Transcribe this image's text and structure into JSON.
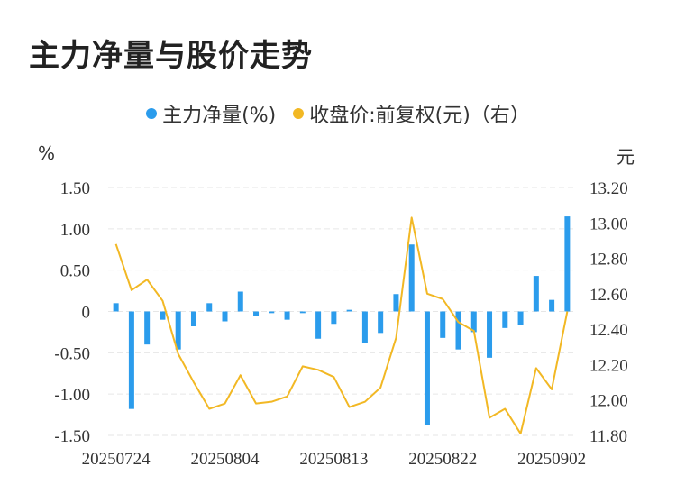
{
  "title": "主力净量与股价走势",
  "colors": {
    "bar": "#2b9cec",
    "line": "#f2b824",
    "grid": "#e6e6e6"
  },
  "chart_data": {
    "type": "bar+line",
    "title": "主力净量与股价走势",
    "legend": {
      "position": "top-center",
      "items": [
        "主力净量(%)",
        "收盘价:前复权(元)（右）"
      ]
    },
    "left_axis": {
      "unit": "%",
      "range": [
        -1.5,
        1.5
      ],
      "ticks": [
        1.5,
        1.0,
        0.5,
        0,
        -0.5,
        -1.0,
        -1.5
      ],
      "tick_labels": [
        "1.50",
        "1.00",
        "0.50",
        "0",
        "-0.50",
        "-1.00",
        "-1.50"
      ]
    },
    "right_axis": {
      "unit": "元",
      "range": [
        11.8,
        13.2
      ],
      "ticks": [
        13.2,
        13.0,
        12.8,
        12.6,
        12.4,
        12.2,
        12.0,
        11.8
      ],
      "tick_labels": [
        "13.20",
        "13.00",
        "12.80",
        "12.60",
        "12.40",
        "12.20",
        "12.00",
        "11.80"
      ]
    },
    "x_tick_labels": [
      "20250724",
      "20250804",
      "20250813",
      "20250822",
      "20250902"
    ],
    "x_tick_indices": [
      0,
      7,
      14,
      21,
      28
    ],
    "grid": true,
    "series": [
      {
        "name": "主力净量(%)",
        "type": "bar",
        "axis": "left",
        "values": [
          0.1,
          -1.18,
          -0.4,
          -0.1,
          -0.46,
          -0.18,
          0.1,
          -0.12,
          0.24,
          -0.06,
          -0.02,
          -0.1,
          -0.02,
          -0.33,
          -0.15,
          0.02,
          -0.38,
          -0.26,
          0.21,
          0.81,
          -1.38,
          -0.32,
          -0.46,
          -0.25,
          -0.56,
          -0.2,
          -0.16,
          0.43,
          0.14,
          1.15
        ]
      },
      {
        "name": "收盘价:前复权(元)（右）",
        "type": "line",
        "axis": "right",
        "values": [
          12.88,
          12.62,
          12.68,
          12.56,
          12.26,
          12.1,
          11.95,
          11.98,
          12.14,
          11.98,
          11.99,
          12.02,
          12.19,
          12.17,
          12.13,
          11.96,
          11.99,
          12.07,
          12.35,
          13.03,
          12.6,
          12.57,
          12.44,
          12.39,
          11.9,
          11.95,
          11.81,
          12.18,
          12.06,
          12.5
        ]
      }
    ]
  }
}
